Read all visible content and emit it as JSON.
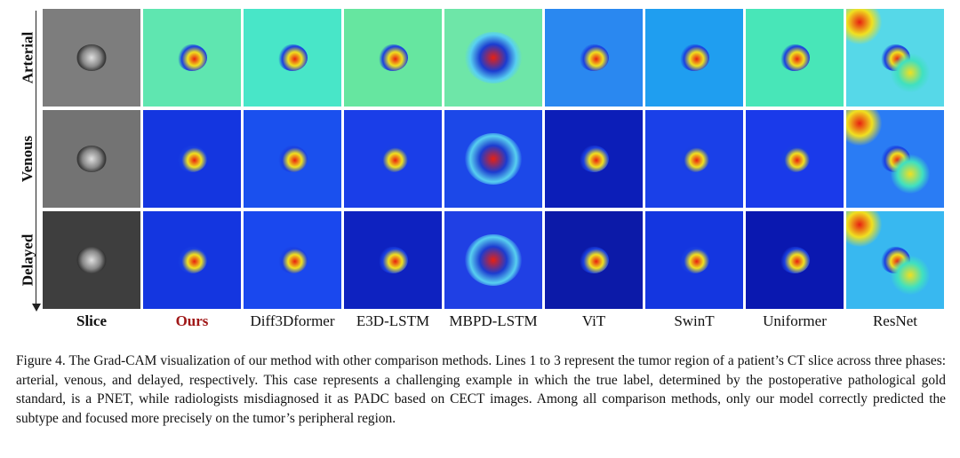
{
  "row_labels": [
    "Arterial",
    "Venous",
    "Delayed"
  ],
  "columns": [
    {
      "label": "Slice",
      "style": "bold"
    },
    {
      "label": "Ours",
      "style": "red"
    },
    {
      "label": "Diff3Dformer",
      "style": "normal"
    },
    {
      "label": "E3D-LSTM",
      "style": "normal"
    },
    {
      "label": "MBPD-LSTM",
      "style": "normal"
    },
    {
      "label": "ViT",
      "style": "normal"
    },
    {
      "label": "SwinT",
      "style": "normal"
    },
    {
      "label": "Uniformer",
      "style": "normal"
    },
    {
      "label": "ResNet",
      "style": "normal"
    }
  ],
  "cell_palette": {
    "arterial_bg": [
      "#7d7d7d",
      "#5fe6b0",
      "#48e6c8",
      "#66e6a0",
      "#6ee6a8",
      "#2a88f0",
      "#1f9ef0",
      "#48e6b8",
      "#56d8e8"
    ],
    "venous_bg": [
      "#737373",
      "#1436e0",
      "#1a50ee",
      "#1a3ee8",
      "#1c48e8",
      "#0c1eb8",
      "#1a40e8",
      "#1a3aea",
      "#2a7cf4"
    ],
    "delayed_bg": [
      "#3e3e3e",
      "#1436e0",
      "#1a48ee",
      "#0e22c0",
      "#2040e4",
      "#0c1aa8",
      "#1436e0",
      "#0a18b0",
      "#38b8f0"
    ],
    "tumor_hot": "#e82010",
    "tumor_warm": "#f0e020"
  },
  "caption": "Figure 4.  The Grad-CAM visualization of our method with other comparison methods.  Lines 1 to 3 represent the tumor region of a patient’s CT slice across three phases: arterial, venous, and delayed, respectively. This case represents a challenging example in which the true label, determined by the postoperative pathological gold standard, is a PNET, while radiologists misdiagnosed it as PADC based on CECT images. Among all comparison methods, only our model correctly predicted the subtype and focused more precisely on the tumor’s peripheral region."
}
